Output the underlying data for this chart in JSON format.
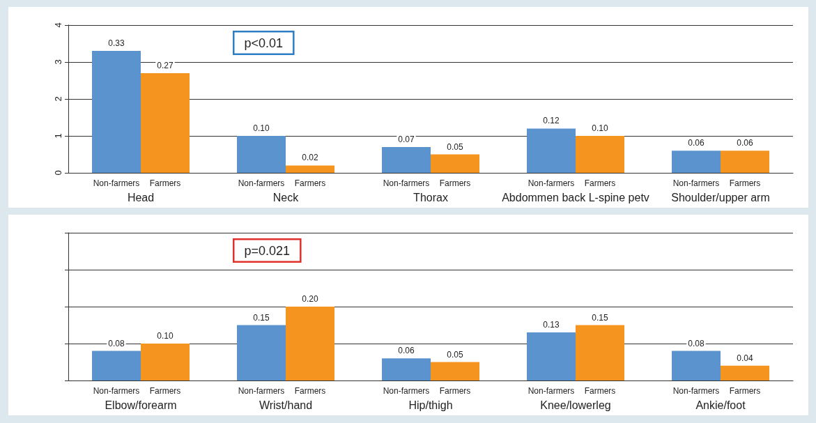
{
  "chart_data": [
    {
      "type": "bar",
      "categories": [
        "Head",
        "Neck",
        "Thorax",
        "Abdommen back L-spine petv",
        "Shoulder/upper arm"
      ],
      "series": [
        {
          "name": "Non-farmers",
          "color": "#5b93cf",
          "values": [
            0.33,
            0.1,
            0.07,
            0.12,
            0.06
          ],
          "value_labels": [
            "0.33",
            "0.10",
            "0.07",
            "0.12",
            "0.06"
          ]
        },
        {
          "name": "Farmers",
          "color": "#f5951f",
          "values": [
            0.27,
            0.02,
            0.05,
            0.1,
            0.06
          ],
          "value_labels": [
            "0.27",
            "0.02",
            "0.05",
            "0.10",
            "0.06"
          ]
        }
      ],
      "ylim": [
        0,
        0.4
      ],
      "yticks": [
        {
          "value": 0,
          "label": null
        },
        {
          "value": 0.1,
          "label": null
        },
        {
          "value": 0.2,
          "label": null
        },
        {
          "value": 0.3,
          "label": null
        },
        {
          "value": 0.4,
          "label": null
        }
      ],
      "y2lim": [
        0,
        4
      ],
      "y2ticks": [
        0,
        1,
        2,
        3,
        4
      ],
      "grid": "y",
      "legend": false,
      "annotations": [
        "p<0.01"
      ]
    },
    {
      "type": "bar",
      "categories": [
        "Elbow/forearm",
        "Wrist/hand",
        "Hip/thigh",
        "Knee/lowerleg",
        "Ankie/foot"
      ],
      "series": [
        {
          "name": "Non-farmers",
          "color": "#5b93cf",
          "values": [
            0.08,
            0.15,
            0.06,
            0.13,
            0.08
          ],
          "value_labels": [
            "0.08",
            "0.15",
            "0.06",
            "0.13",
            "0.08"
          ]
        },
        {
          "name": "Farmers",
          "color": "#f5951f",
          "values": [
            0.1,
            0.2,
            0.05,
            0.15,
            0.04
          ],
          "value_labels": [
            "0.10",
            "0.20",
            "0.05",
            "0.15",
            "0.04"
          ]
        }
      ],
      "ylim": [
        0,
        0.4
      ],
      "yticks": [
        {
          "value": 0,
          "label": null
        },
        {
          "value": 0.1,
          "label": null
        },
        {
          "value": 0.2,
          "label": null
        },
        {
          "value": 0.3,
          "label": null
        },
        {
          "value": 0.4,
          "label": null
        }
      ],
      "grid": "y",
      "legend": false,
      "tick_labels": "x",
      "annotations": [
        "p=0.021"
      ]
    }
  ]
}
